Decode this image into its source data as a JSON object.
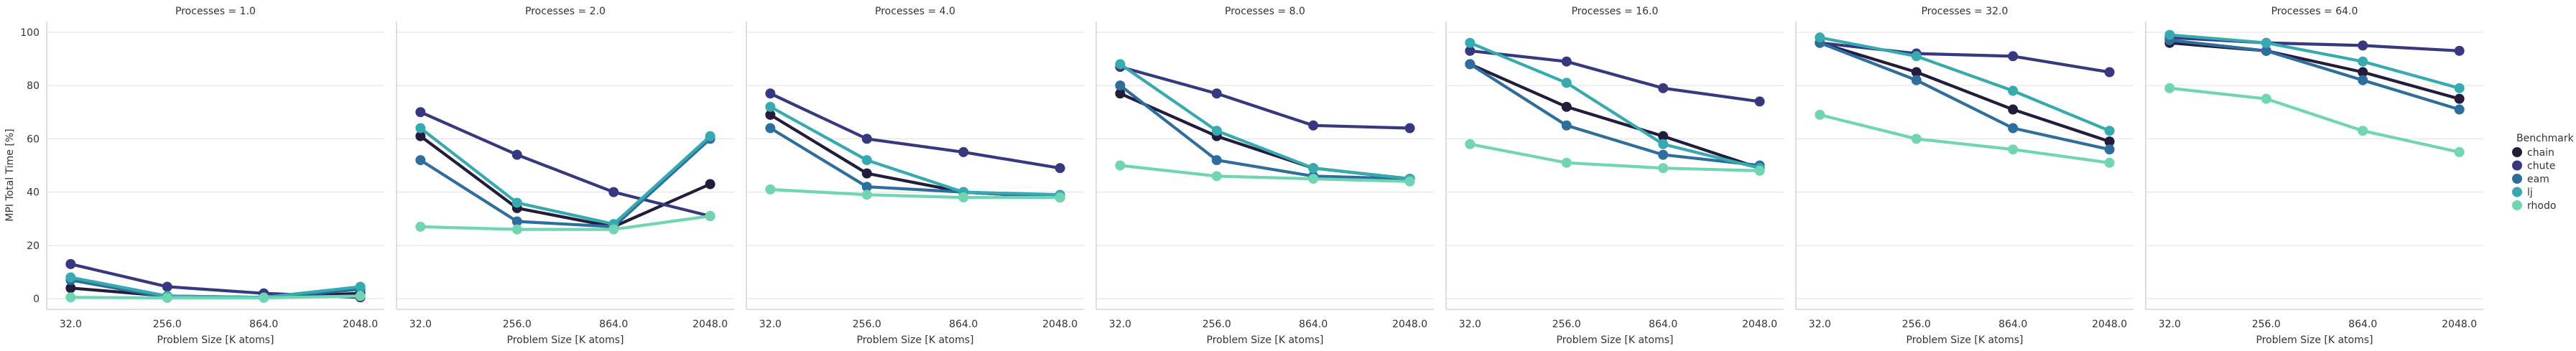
{
  "chart_data": {
    "type": "line",
    "ylabel": "MPI Total Time [%]",
    "xlabel": "Problem Size [K atoms]",
    "categories": [
      "32.0",
      "256.0",
      "864.0",
      "2048.0"
    ],
    "ylim": [
      -4,
      104
    ],
    "yticks": [
      0,
      20,
      40,
      60,
      80,
      100
    ],
    "grid": "horizontal",
    "legend": {
      "title": "Benchmark",
      "placement": "right",
      "entries": [
        "chain",
        "chute",
        "eam",
        "lj",
        "rhodo"
      ]
    },
    "colors": {
      "chain": "#241c3c",
      "chute": "#36397f",
      "eam": "#2d6e9d",
      "lj": "#35aaaf",
      "rhodo": "#6fd6b1"
    },
    "panels": [
      {
        "title": "Processes = 1.0",
        "series": [
          {
            "name": "chain",
            "values": [
              4,
              1,
              0.5,
              2
            ]
          },
          {
            "name": "chute",
            "values": [
              13,
              4.5,
              2,
              0.5
            ]
          },
          {
            "name": "eam",
            "values": [
              7,
              0.5,
              0.5,
              3.5
            ]
          },
          {
            "name": "lj",
            "values": [
              8,
              1,
              0.5,
              4.5
            ]
          },
          {
            "name": "rhodo",
            "values": [
              0.5,
              0.3,
              0.3,
              1
            ]
          }
        ]
      },
      {
        "title": "Processes = 2.0",
        "series": [
          {
            "name": "chain",
            "values": [
              61,
              34,
              27,
              43
            ]
          },
          {
            "name": "chute",
            "values": [
              70,
              54,
              40,
              31
            ]
          },
          {
            "name": "eam",
            "values": [
              52,
              29,
              27,
              60
            ]
          },
          {
            "name": "lj",
            "values": [
              64,
              36,
              28,
              61
            ]
          },
          {
            "name": "rhodo",
            "values": [
              27,
              26,
              26,
              31
            ]
          }
        ]
      },
      {
        "title": "Processes = 4.0",
        "series": [
          {
            "name": "chain",
            "values": [
              69,
              47,
              40,
              38
            ]
          },
          {
            "name": "chute",
            "values": [
              77,
              60,
              55,
              49
            ]
          },
          {
            "name": "eam",
            "values": [
              64,
              42,
              40,
              38
            ]
          },
          {
            "name": "lj",
            "values": [
              72,
              52,
              40,
              39
            ]
          },
          {
            "name": "rhodo",
            "values": [
              41,
              39,
              38,
              38
            ]
          }
        ]
      },
      {
        "title": "Processes = 8.0",
        "series": [
          {
            "name": "chain",
            "values": [
              77,
              61,
              49,
              45
            ]
          },
          {
            "name": "chute",
            "values": [
              87,
              77,
              65,
              64
            ]
          },
          {
            "name": "eam",
            "values": [
              80,
              52,
              46,
              45
            ]
          },
          {
            "name": "lj",
            "values": [
              88,
              63,
              49,
              45
            ]
          },
          {
            "name": "rhodo",
            "values": [
              50,
              46,
              45,
              44
            ]
          }
        ]
      },
      {
        "title": "Processes = 16.0",
        "series": [
          {
            "name": "chain",
            "values": [
              88,
              72,
              61,
              49
            ]
          },
          {
            "name": "chute",
            "values": [
              93,
              89,
              79,
              74
            ]
          },
          {
            "name": "eam",
            "values": [
              88,
              65,
              54,
              50
            ]
          },
          {
            "name": "lj",
            "values": [
              96,
              81,
              58,
              49
            ]
          },
          {
            "name": "rhodo",
            "values": [
              58,
              51,
              49,
              48
            ]
          }
        ]
      },
      {
        "title": "Processes = 32.0",
        "series": [
          {
            "name": "chain",
            "values": [
              96,
              85,
              71,
              59
            ]
          },
          {
            "name": "chute",
            "values": [
              96,
              92,
              91,
              85
            ]
          },
          {
            "name": "eam",
            "values": [
              96,
              82,
              64,
              56
            ]
          },
          {
            "name": "lj",
            "values": [
              98,
              91,
              78,
              63
            ]
          },
          {
            "name": "rhodo",
            "values": [
              69,
              60,
              56,
              51
            ]
          }
        ]
      },
      {
        "title": "Processes = 64.0",
        "series": [
          {
            "name": "chain",
            "values": [
              96,
              93,
              85,
              75
            ]
          },
          {
            "name": "chute",
            "values": [
              98,
              96,
              95,
              93
            ]
          },
          {
            "name": "eam",
            "values": [
              97,
              93,
              82,
              71
            ]
          },
          {
            "name": "lj",
            "values": [
              99,
              96,
              89,
              79
            ]
          },
          {
            "name": "rhodo",
            "values": [
              79,
              75,
              63,
              55
            ]
          }
        ]
      }
    ]
  }
}
